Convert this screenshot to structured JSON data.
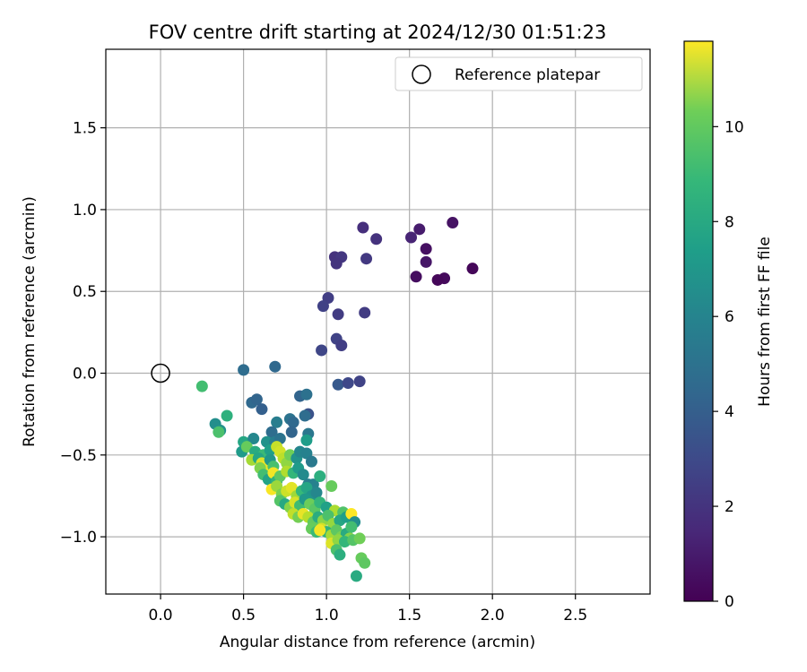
{
  "chart_data": {
    "type": "scatter",
    "title": "FOV centre drift starting at 2024/12/30 01:51:23",
    "xlabel": "Angular distance from reference (arcmin)",
    "ylabel": "Rotation from reference (arcmin)",
    "xlim": [
      -0.33,
      2.95
    ],
    "ylim": [
      -1.35,
      1.98
    ],
    "xticks": [
      0.0,
      0.5,
      1.0,
      1.5,
      2.0,
      2.5
    ],
    "yticks": [
      -1.0,
      -0.5,
      0.0,
      0.5,
      1.0,
      1.5
    ],
    "xtick_labels": [
      "0.0",
      "0.5",
      "1.0",
      "1.5",
      "2.0",
      "2.5"
    ],
    "ytick_labels": [
      "−1.0",
      "−0.5",
      "0.0",
      "0.5",
      "1.0",
      "1.5"
    ],
    "grid": true,
    "legend": {
      "placement": "top-right",
      "entries": [
        "Reference platepar"
      ]
    },
    "reference_point": {
      "x": 0.0,
      "y": 0.0,
      "label": "Reference platepar"
    },
    "colorbar": {
      "label": "Hours from first FF file",
      "colormap": "viridis",
      "range": [
        0,
        11.8
      ],
      "ticks": [
        0,
        2,
        4,
        6,
        8,
        10
      ],
      "tick_labels": [
        "0",
        "2",
        "4",
        "6",
        "8",
        "10"
      ]
    },
    "series": [
      {
        "points": [
          {
            "x": 1.76,
            "y": 0.92,
            "c": 0.6
          },
          {
            "x": 1.56,
            "y": 0.88,
            "c": 0.9
          },
          {
            "x": 1.51,
            "y": 0.83,
            "c": 1.2
          },
          {
            "x": 1.6,
            "y": 0.76,
            "c": 0.5
          },
          {
            "x": 1.6,
            "y": 0.68,
            "c": 0.7
          },
          {
            "x": 1.88,
            "y": 0.64,
            "c": 0.2
          },
          {
            "x": 1.54,
            "y": 0.59,
            "c": 0.4
          },
          {
            "x": 1.71,
            "y": 0.58,
            "c": 0.3
          },
          {
            "x": 1.67,
            "y": 0.57,
            "c": 0.2
          },
          {
            "x": 1.22,
            "y": 0.89,
            "c": 1.6
          },
          {
            "x": 1.3,
            "y": 0.82,
            "c": 1.7
          },
          {
            "x": 1.05,
            "y": 0.71,
            "c": 1.7
          },
          {
            "x": 1.09,
            "y": 0.71,
            "c": 1.9
          },
          {
            "x": 1.06,
            "y": 0.67,
            "c": 1.8
          },
          {
            "x": 1.24,
            "y": 0.7,
            "c": 2.0
          },
          {
            "x": 1.01,
            "y": 0.46,
            "c": 2.2
          },
          {
            "x": 0.98,
            "y": 0.41,
            "c": 2.3
          },
          {
            "x": 1.07,
            "y": 0.36,
            "c": 2.1
          },
          {
            "x": 1.23,
            "y": 0.37,
            "c": 2.1
          },
          {
            "x": 1.06,
            "y": 0.21,
            "c": 2.4
          },
          {
            "x": 1.09,
            "y": 0.17,
            "c": 2.2
          },
          {
            "x": 0.97,
            "y": 0.14,
            "c": 2.5
          },
          {
            "x": 1.07,
            "y": -0.07,
            "c": 3.3
          },
          {
            "x": 1.13,
            "y": -0.06,
            "c": 2.6
          },
          {
            "x": 1.2,
            "y": -0.05,
            "c": 2.4
          },
          {
            "x": 0.5,
            "y": 0.02,
            "c": 4.2
          },
          {
            "x": 0.69,
            "y": 0.04,
            "c": 4.0
          },
          {
            "x": 0.25,
            "y": -0.08,
            "c": 8.2
          },
          {
            "x": 0.55,
            "y": -0.18,
            "c": 4.0
          },
          {
            "x": 0.58,
            "y": -0.16,
            "c": 3.8
          },
          {
            "x": 0.61,
            "y": -0.22,
            "c": 3.6
          },
          {
            "x": 0.84,
            "y": -0.14,
            "c": 3.8
          },
          {
            "x": 0.88,
            "y": -0.13,
            "c": 4.4
          },
          {
            "x": 0.89,
            "y": -0.25,
            "c": 3.0
          },
          {
            "x": 0.87,
            "y": -0.26,
            "c": 4.2
          },
          {
            "x": 0.33,
            "y": -0.31,
            "c": 5.8
          },
          {
            "x": 0.4,
            "y": -0.26,
            "c": 7.5
          },
          {
            "x": 0.36,
            "y": -0.35,
            "c": 6.0
          },
          {
            "x": 0.35,
            "y": -0.36,
            "c": 8.4
          },
          {
            "x": 0.7,
            "y": -0.3,
            "c": 5.0
          },
          {
            "x": 0.78,
            "y": -0.28,
            "c": 4.5
          },
          {
            "x": 0.8,
            "y": -0.3,
            "c": 4.0
          },
          {
            "x": 0.67,
            "y": -0.36,
            "c": 4.2
          },
          {
            "x": 0.79,
            "y": -0.36,
            "c": 3.8
          },
          {
            "x": 0.89,
            "y": -0.37,
            "c": 4.7
          },
          {
            "x": 0.5,
            "y": -0.42,
            "c": 7.0
          },
          {
            "x": 0.56,
            "y": -0.4,
            "c": 5.5
          },
          {
            "x": 0.64,
            "y": -0.42,
            "c": 6.0
          },
          {
            "x": 0.69,
            "y": -0.42,
            "c": 5.0
          },
          {
            "x": 0.72,
            "y": -0.4,
            "c": 4.5
          },
          {
            "x": 0.88,
            "y": -0.41,
            "c": 6.5
          },
          {
            "x": 0.49,
            "y": -0.48,
            "c": 6.4
          },
          {
            "x": 0.52,
            "y": -0.45,
            "c": 9.0
          },
          {
            "x": 0.57,
            "y": -0.48,
            "c": 7.2
          },
          {
            "x": 0.62,
            "y": -0.5,
            "c": 8.0
          },
          {
            "x": 0.66,
            "y": -0.47,
            "c": 6.6
          },
          {
            "x": 0.7,
            "y": -0.45,
            "c": 10.8
          },
          {
            "x": 0.72,
            "y": -0.48,
            "c": 11.0
          },
          {
            "x": 0.55,
            "y": -0.53,
            "c": 10.2
          },
          {
            "x": 0.59,
            "y": -0.52,
            "c": 7.0
          },
          {
            "x": 0.61,
            "y": -0.55,
            "c": 11.2
          },
          {
            "x": 0.63,
            "y": -0.57,
            "c": 11.5
          },
          {
            "x": 0.6,
            "y": -0.58,
            "c": 9.5
          },
          {
            "x": 0.66,
            "y": -0.53,
            "c": 6.2
          },
          {
            "x": 0.68,
            "y": -0.57,
            "c": 8.3
          },
          {
            "x": 0.74,
            "y": -0.52,
            "c": 10.6
          },
          {
            "x": 0.76,
            "y": -0.55,
            "c": 9.8
          },
          {
            "x": 0.78,
            "y": -0.5,
            "c": 9.2
          },
          {
            "x": 0.82,
            "y": -0.52,
            "c": 6.0
          },
          {
            "x": 0.84,
            "y": -0.48,
            "c": 5.4
          },
          {
            "x": 0.88,
            "y": -0.49,
            "c": 5.2
          },
          {
            "x": 0.91,
            "y": -0.54,
            "c": 4.8
          },
          {
            "x": 0.62,
            "y": -0.62,
            "c": 8.2
          },
          {
            "x": 0.65,
            "y": -0.65,
            "c": 6.8
          },
          {
            "x": 0.68,
            "y": -0.61,
            "c": 11.6
          },
          {
            "x": 0.7,
            "y": -0.66,
            "c": 7.6
          },
          {
            "x": 0.72,
            "y": -0.63,
            "c": 8.8
          },
          {
            "x": 0.76,
            "y": -0.6,
            "c": 10.4
          },
          {
            "x": 0.8,
            "y": -0.61,
            "c": 7.8
          },
          {
            "x": 0.83,
            "y": -0.58,
            "c": 6.4
          },
          {
            "x": 0.86,
            "y": -0.62,
            "c": 5.6
          },
          {
            "x": 0.89,
            "y": -0.68,
            "c": 5.0
          },
          {
            "x": 0.92,
            "y": -0.68,
            "c": 5.2
          },
          {
            "x": 0.96,
            "y": -0.63,
            "c": 7.4
          },
          {
            "x": 1.03,
            "y": -0.69,
            "c": 9.0
          },
          {
            "x": 0.67,
            "y": -0.71,
            "c": 11.7
          },
          {
            "x": 0.7,
            "y": -0.69,
            "c": 10.0
          },
          {
            "x": 0.73,
            "y": -0.74,
            "c": 9.4
          },
          {
            "x": 0.76,
            "y": -0.72,
            "c": 10.9
          },
          {
            "x": 0.79,
            "y": -0.7,
            "c": 11.3
          },
          {
            "x": 0.82,
            "y": -0.75,
            "c": 10.1
          },
          {
            "x": 0.85,
            "y": -0.72,
            "c": 7.9
          },
          {
            "x": 0.88,
            "y": -0.7,
            "c": 6.9
          },
          {
            "x": 0.91,
            "y": -0.75,
            "c": 6.1
          },
          {
            "x": 0.94,
            "y": -0.73,
            "c": 5.5
          },
          {
            "x": 0.72,
            "y": -0.78,
            "c": 8.6
          },
          {
            "x": 0.75,
            "y": -0.8,
            "c": 7.1
          },
          {
            "x": 0.78,
            "y": -0.82,
            "c": 9.6
          },
          {
            "x": 0.81,
            "y": -0.79,
            "c": 11.1
          },
          {
            "x": 0.84,
            "y": -0.81,
            "c": 8.1
          },
          {
            "x": 0.87,
            "y": -0.77,
            "c": 6.3
          },
          {
            "x": 0.9,
            "y": -0.8,
            "c": 9.1
          },
          {
            "x": 0.93,
            "y": -0.83,
            "c": 8.7
          },
          {
            "x": 0.96,
            "y": -0.79,
            "c": 7.7
          },
          {
            "x": 1.0,
            "y": -0.82,
            "c": 6.7
          },
          {
            "x": 1.05,
            "y": -0.84,
            "c": 10.3
          },
          {
            "x": 1.1,
            "y": -0.85,
            "c": 8.5
          },
          {
            "x": 0.8,
            "y": -0.86,
            "c": 10.7
          },
          {
            "x": 0.83,
            "y": -0.88,
            "c": 9.3
          },
          {
            "x": 0.86,
            "y": -0.86,
            "c": 11.4
          },
          {
            "x": 0.89,
            "y": -0.88,
            "c": 10.5
          },
          {
            "x": 0.92,
            "y": -0.91,
            "c": 8.9
          },
          {
            "x": 0.95,
            "y": -0.88,
            "c": 7.3
          },
          {
            "x": 0.98,
            "y": -0.9,
            "c": 9.7
          },
          {
            "x": 1.01,
            "y": -0.87,
            "c": 8.4
          },
          {
            "x": 1.04,
            "y": -0.92,
            "c": 9.9
          },
          {
            "x": 1.08,
            "y": -0.9,
            "c": 7.0
          },
          {
            "x": 1.12,
            "y": -0.88,
            "c": 6.6
          },
          {
            "x": 1.15,
            "y": -0.86,
            "c": 11.8
          },
          {
            "x": 1.17,
            "y": -0.91,
            "c": 5.8
          },
          {
            "x": 0.91,
            "y": -0.95,
            "c": 9.0
          },
          {
            "x": 0.94,
            "y": -0.97,
            "c": 8.0
          },
          {
            "x": 0.97,
            "y": -0.95,
            "c": 11.0
          },
          {
            "x": 1.0,
            "y": -0.97,
            "c": 7.6
          },
          {
            "x": 1.03,
            "y": -0.99,
            "c": 10.2
          },
          {
            "x": 1.06,
            "y": -0.96,
            "c": 8.8
          },
          {
            "x": 1.09,
            "y": -1.0,
            "c": 9.4
          },
          {
            "x": 1.12,
            "y": -0.98,
            "c": 7.2
          },
          {
            "x": 1.15,
            "y": -0.94,
            "c": 8.2
          },
          {
            "x": 1.14,
            "y": -1.01,
            "c": 9.6
          },
          {
            "x": 0.96,
            "y": -0.96,
            "c": 11.6
          },
          {
            "x": 1.03,
            "y": -1.04,
            "c": 11.2
          },
          {
            "x": 1.07,
            "y": -1.02,
            "c": 9.8
          },
          {
            "x": 1.11,
            "y": -1.03,
            "c": 7.8
          },
          {
            "x": 1.16,
            "y": -1.02,
            "c": 8.6
          },
          {
            "x": 1.2,
            "y": -1.01,
            "c": 9.2
          },
          {
            "x": 1.06,
            "y": -1.08,
            "c": 8.4
          },
          {
            "x": 1.08,
            "y": -1.11,
            "c": 7.4
          },
          {
            "x": 1.21,
            "y": -1.13,
            "c": 9.0
          },
          {
            "x": 1.23,
            "y": -1.16,
            "c": 8.8
          },
          {
            "x": 1.18,
            "y": -1.24,
            "c": 7.2
          }
        ]
      }
    ]
  }
}
